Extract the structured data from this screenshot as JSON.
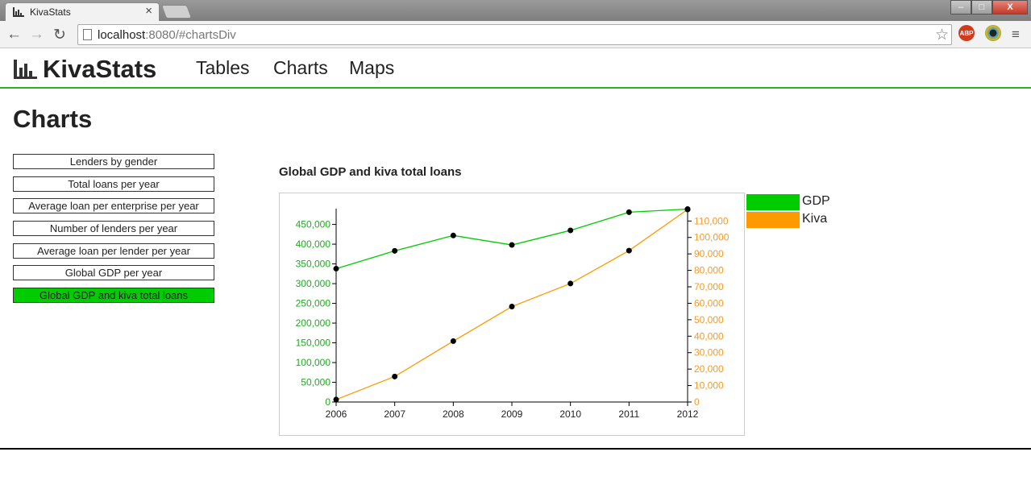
{
  "browser": {
    "tab_title": "KivaStats",
    "tab_close": "×",
    "url_host": "localhost",
    "url_rest": ":8080/#chartsDiv",
    "ext_abp": "ABP",
    "window_controls": {
      "minimize": "–",
      "maximize": "□",
      "close": "X"
    },
    "nav": {
      "back": "←",
      "forward": "→",
      "reload": "↻",
      "star": "☆",
      "menu": "≡"
    }
  },
  "header": {
    "brand": "KivaStats",
    "nav": [
      {
        "label": "Tables"
      },
      {
        "label": "Charts"
      },
      {
        "label": "Maps"
      }
    ]
  },
  "main": {
    "title": "Charts",
    "chart_buttons": [
      {
        "label": "Lenders by gender",
        "active": false
      },
      {
        "label": "Total loans per year",
        "active": false
      },
      {
        "label": "Average loan per enterprise per year",
        "active": false
      },
      {
        "label": "Number of lenders per year",
        "active": false
      },
      {
        "label": "Average loan per lender per year",
        "active": false
      },
      {
        "label": "Global GDP per year",
        "active": false
      },
      {
        "label": "Global GDP and kiva total loans",
        "active": true
      }
    ]
  },
  "colors": {
    "accent": "#2bb21e",
    "gdp": "#00cc00",
    "kiva": "#ff9900",
    "gdp_axis": "#22aa22",
    "kiva_axis": "#f39a2b"
  },
  "chart_data": {
    "type": "line",
    "title": "Global GDP and kiva total loans",
    "x": [
      "2006",
      "2007",
      "2008",
      "2009",
      "2010",
      "2011",
      "2012"
    ],
    "series": [
      {
        "name": "GDP",
        "axis": "left",
        "values": [
          338000,
          383000,
          422000,
          398000,
          435000,
          481000,
          489000
        ]
      },
      {
        "name": "Kiva",
        "axis": "right",
        "values": [
          1500,
          15500,
          37000,
          58000,
          72000,
          92000,
          117000
        ]
      }
    ],
    "y_left": {
      "ticks": [
        "0",
        "50,000",
        "100,000",
        "150,000",
        "200,000",
        "250,000",
        "300,000",
        "350,000",
        "400,000",
        "450,000"
      ],
      "lim": [
        0,
        490000
      ]
    },
    "y_right": {
      "ticks": [
        "0",
        "10,000",
        "20,000",
        "30,000",
        "40,000",
        "50,000",
        "60,000",
        "70,000",
        "80,000",
        "90,000",
        "100,000",
        "110,000"
      ],
      "lim": [
        0,
        117500
      ]
    },
    "legend": "right",
    "grid": false
  }
}
